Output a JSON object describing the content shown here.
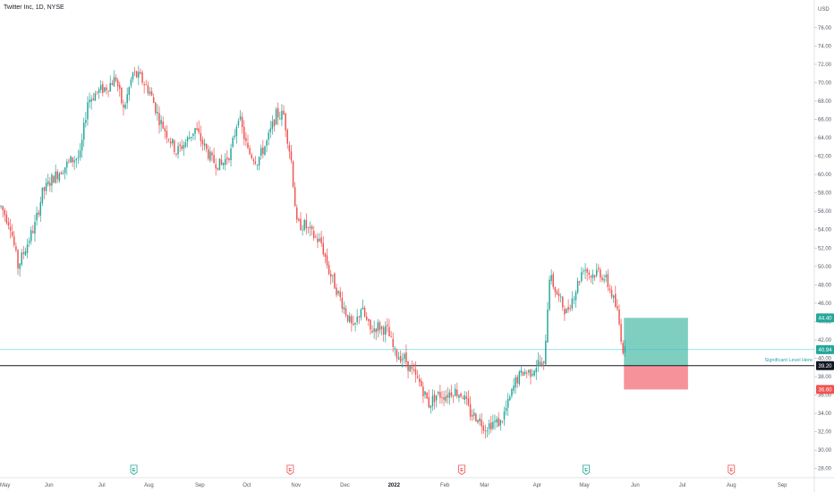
{
  "header": {
    "title": "Twitter Inc, 1D, NYSE"
  },
  "colors": {
    "up": "#26a69a",
    "down": "#ef5350",
    "level_line": "#26c6da",
    "current_line": "#131722",
    "profit_zone": "#7fcfc1",
    "loss_zone": "#f6939a",
    "axis_text": "#555b66",
    "event_earnings": "#26a69a",
    "event_dividend": "#ef5350"
  },
  "chart_data": {
    "type": "candlestick",
    "currency": "USD",
    "ylim": [
      27.0,
      79.0
    ],
    "x_range_index": [
      0,
      432
    ],
    "y_ticks": [
      "28.00",
      "30.00",
      "32.00",
      "34.00",
      "36.00",
      "38.00",
      "40.00",
      "42.00",
      "44.00",
      "46.00",
      "48.00",
      "50.00",
      "52.00",
      "54.00",
      "56.00",
      "58.00",
      "60.00",
      "62.00",
      "64.00",
      "66.00",
      "68.00",
      "70.00",
      "72.00",
      "74.00",
      "76.00"
    ],
    "x_ticks": [
      {
        "label": "May",
        "i": 0
      },
      {
        "label": "Jun",
        "i": 26
      },
      {
        "label": "Jul",
        "i": 54
      },
      {
        "label": "Aug",
        "i": 79
      },
      {
        "label": "Sep",
        "i": 106
      },
      {
        "label": "Oct",
        "i": 131
      },
      {
        "label": "Nov",
        "i": 157
      },
      {
        "label": "Dec",
        "i": 183
      },
      {
        "label": "2022",
        "i": 209
      },
      {
        "label": "Feb",
        "i": 236
      },
      {
        "label": "Mar",
        "i": 257
      },
      {
        "label": "Apr",
        "i": 285
      },
      {
        "label": "May",
        "i": 310
      },
      {
        "label": "Jun",
        "i": 337
      },
      {
        "label": "Jul",
        "i": 362
      },
      {
        "label": "Aug",
        "i": 388
      },
      {
        "label": "Sep",
        "i": 415
      }
    ],
    "price_path": [
      [
        0,
        56.5
      ],
      [
        5,
        54.5
      ],
      [
        9,
        50.0
      ],
      [
        14,
        52.5
      ],
      [
        18,
        54.5
      ],
      [
        22,
        58.0
      ],
      [
        27,
        59.5
      ],
      [
        32,
        60.5
      ],
      [
        37,
        61.5
      ],
      [
        42,
        62.0
      ],
      [
        46,
        68.0
      ],
      [
        51,
        69.0
      ],
      [
        56,
        69.5
      ],
      [
        61,
        70.5
      ],
      [
        65,
        67.0
      ],
      [
        70,
        71.0
      ],
      [
        74,
        70.5
      ],
      [
        79,
        69.0
      ],
      [
        84,
        66.0
      ],
      [
        88,
        64.5
      ],
      [
        93,
        62.5
      ],
      [
        98,
        63.5
      ],
      [
        103,
        65.0
      ],
      [
        108,
        63.0
      ],
      [
        112,
        61.5
      ],
      [
        117,
        61.0
      ],
      [
        122,
        62.5
      ],
      [
        126,
        66.5
      ],
      [
        131,
        62.5
      ],
      [
        136,
        61.5
      ],
      [
        141,
        63.5
      ],
      [
        146,
        66.5
      ],
      [
        150,
        66.5
      ],
      [
        154,
        61.5
      ],
      [
        157,
        54.5
      ],
      [
        161,
        54.5
      ],
      [
        165,
        53.5
      ],
      [
        170,
        52.5
      ],
      [
        174,
        49.5
      ],
      [
        178,
        47.5
      ],
      [
        183,
        45.0
      ],
      [
        187,
        43.0
      ],
      [
        191,
        45.5
      ],
      [
        196,
        43.0
      ],
      [
        200,
        43.5
      ],
      [
        205,
        43.0
      ],
      [
        209,
        40.5
      ],
      [
        214,
        40.0
      ],
      [
        218,
        38.5
      ],
      [
        223,
        37.0
      ],
      [
        227,
        35.0
      ],
      [
        231,
        36.0
      ],
      [
        236,
        36.0
      ],
      [
        240,
        36.5
      ],
      [
        245,
        36.0
      ],
      [
        249,
        34.0
      ],
      [
        253,
        33.5
      ],
      [
        257,
        32.5
      ],
      [
        261,
        33.0
      ],
      [
        265,
        33.0
      ],
      [
        269,
        35.0
      ],
      [
        273,
        37.5
      ],
      [
        277,
        38.5
      ],
      [
        281,
        38.5
      ],
      [
        285,
        39.5
      ],
      [
        288,
        39.0
      ],
      [
        291,
        49.0
      ],
      [
        296,
        46.5
      ],
      [
        300,
        45.0
      ],
      [
        305,
        47.5
      ],
      [
        309,
        50.0
      ],
      [
        313,
        49.0
      ],
      [
        317,
        49.5
      ],
      [
        321,
        48.5
      ],
      [
        324,
        47.0
      ],
      [
        327,
        45.0
      ],
      [
        330,
        41.0
      ]
    ],
    "reference_lines": [
      {
        "name": "significant-level",
        "value": 40.94,
        "label": "Significant Level Here",
        "price_tag": "40.94"
      },
      {
        "name": "current-price",
        "value": 39.2,
        "price_tag": "39.20"
      }
    ],
    "position": {
      "type": "long",
      "entry": 39.2,
      "target": 44.4,
      "stop": 36.6,
      "start_i": 331,
      "end_i": 365,
      "entry_tag": "39.20",
      "target_tag": "44.40",
      "stop_tag": "36.60"
    },
    "events": [
      {
        "type": "earnings",
        "i": 71,
        "label": "E"
      },
      {
        "type": "dividend",
        "i": 154,
        "label": "E"
      },
      {
        "type": "dividend",
        "i": 245,
        "label": "E"
      },
      {
        "type": "earnings",
        "i": 311,
        "label": "E"
      },
      {
        "type": "dividend",
        "i": 388,
        "label": "E"
      }
    ]
  }
}
